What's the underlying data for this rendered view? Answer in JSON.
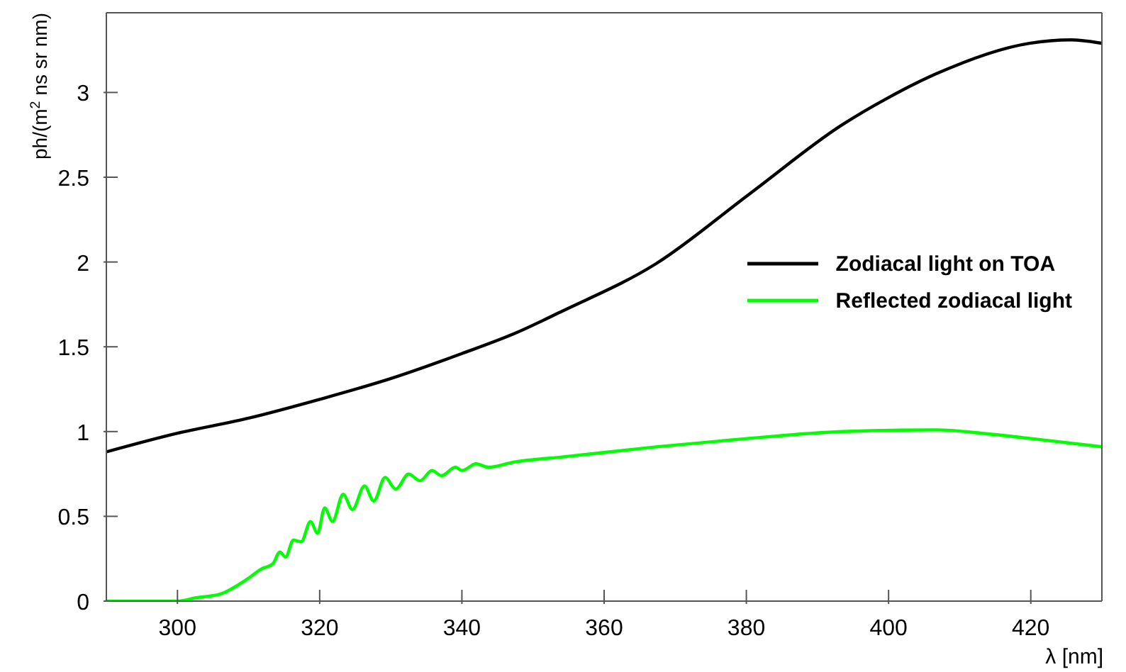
{
  "chart_data": {
    "type": "line",
    "xlabel": "λ [nm]",
    "ylabel": "ph/(m$^{2}$ ns sr nm)",
    "xlim": [
      290,
      430
    ],
    "xticks": [
      300,
      320,
      340,
      360,
      380,
      400,
      420
    ],
    "ylim": [
      0,
      3.47
    ],
    "yticks": [
      0,
      0.5,
      1,
      1.5,
      2,
      2.5,
      3
    ],
    "legend": "right",
    "marker": "none",
    "line_style": "solid",
    "series": [
      {
        "name": "Zodiacal light on TOA",
        "color": "#000000",
        "x": [
          290,
          300,
          310.1,
          320,
          329.8,
          340,
          347.5,
          354.1,
          367.3,
          380.4,
          393.5,
          400,
          406.7,
          419.8,
          425.7,
          430
        ],
        "values": [
          0.88,
          0.99,
          1.08,
          1.19,
          1.31,
          1.46,
          1.58,
          1.71,
          1.99,
          2.4,
          2.81,
          2.97,
          3.11,
          3.29,
          3.31,
          3.29
        ]
      },
      {
        "name": "Reflected zodiacal light",
        "color": "#00ff00",
        "x": [
          290,
          300,
          302.6,
          305.9,
          309.8,
          311.8,
          313.4,
          314.4,
          315.2,
          316.3,
          317.4,
          318.7,
          319.7,
          320.7,
          321.8,
          323.3,
          324.6,
          326.3,
          327.6,
          329.2,
          330.7,
          332.5,
          334.1,
          335.8,
          337.1,
          339.1,
          340,
          342,
          343.7,
          347.3,
          354.1,
          367.3,
          380.4,
          393.5,
          406.7,
          413.2,
          419.8,
          430
        ],
        "values": [
          0,
          0,
          0.02,
          0.04,
          0.13,
          0.19,
          0.22,
          0.29,
          0.26,
          0.36,
          0.35,
          0.47,
          0.4,
          0.55,
          0.47,
          0.63,
          0.54,
          0.68,
          0.59,
          0.73,
          0.66,
          0.75,
          0.71,
          0.77,
          0.74,
          0.79,
          0.77,
          0.81,
          0.79,
          0.82,
          0.85,
          0.91,
          0.96,
          1.0,
          1.01,
          0.99,
          0.96,
          0.91
        ]
      }
    ]
  }
}
